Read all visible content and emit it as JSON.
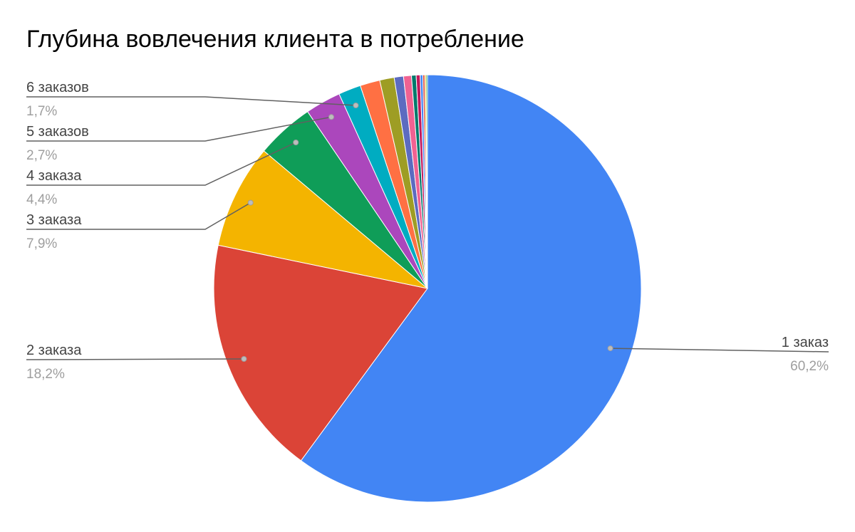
{
  "chart_data": {
    "type": "pie",
    "title": "Глубина вовлечения клиента в потребление",
    "slices": [
      {
        "name": "1 заказ",
        "value": 60.2,
        "label": "60,2%",
        "color": "#4285f4"
      },
      {
        "name": "2 заказа",
        "value": 18.2,
        "label": "18,2%",
        "color": "#db4437"
      },
      {
        "name": "3 заказа",
        "value": 7.9,
        "label": "7,9%",
        "color": "#f4b400"
      },
      {
        "name": "4 заказа",
        "value": 4.4,
        "label": "4,4%",
        "color": "#0f9d58"
      },
      {
        "name": "5 заказов",
        "value": 2.7,
        "label": "2,7%",
        "color": "#ab47bc"
      },
      {
        "name": "6 заказов",
        "value": 1.7,
        "label": "1,7%",
        "color": "#00acc1"
      },
      {
        "name": "",
        "value": 1.5,
        "color": "#ff7043"
      },
      {
        "name": "",
        "value": 1.1,
        "color": "#9e9d24"
      },
      {
        "name": "",
        "value": 0.7,
        "color": "#5c6bc0"
      },
      {
        "name": "",
        "value": 0.6,
        "color": "#f06292"
      },
      {
        "name": "",
        "value": 0.35,
        "color": "#00796b"
      },
      {
        "name": "",
        "value": 0.3,
        "color": "#c2185b"
      },
      {
        "name": "",
        "value": 0.2,
        "color": "#4285f4"
      },
      {
        "name": "",
        "value": 0.15,
        "color": "#db4437"
      },
      {
        "name": "",
        "value": 0.1,
        "color": "#f4b400"
      },
      {
        "name": "",
        "value": 0.1,
        "color": "#0f9d58"
      }
    ],
    "start_angle": "12 o'clock",
    "direction": "clockwise",
    "legend": "none",
    "label_style": "callout lines with name and percentage",
    "label_color": "#444444",
    "percent_color": "#9e9e9e",
    "leader_color": "#616161"
  }
}
